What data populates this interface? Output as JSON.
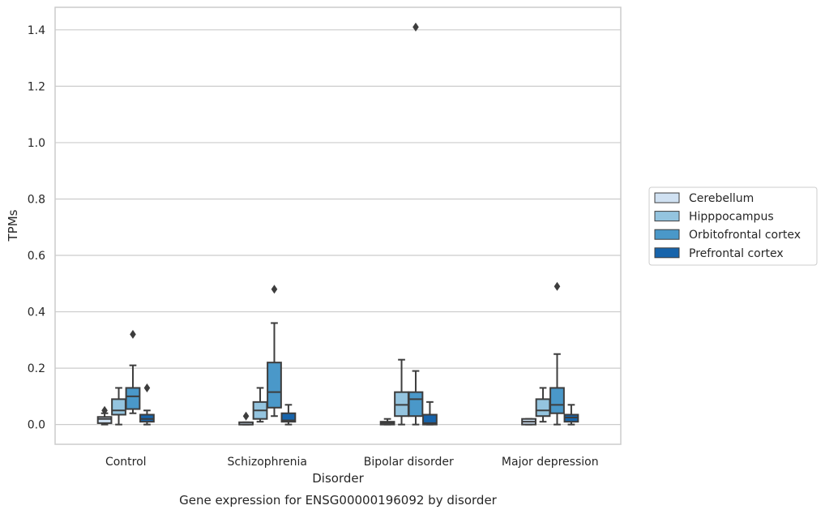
{
  "chart_data": {
    "type": "box",
    "title": "",
    "caption": "Gene expression for ENSG00000196092 by disorder",
    "xlabel": "Disorder",
    "ylabel": "TPMs",
    "ylim": [
      -0.07,
      1.48
    ],
    "yticks": [
      0.0,
      0.2,
      0.4,
      0.6,
      0.8,
      1.0,
      1.2,
      1.4
    ],
    "ytick_labels": [
      "0.0",
      "0.2",
      "0.4",
      "0.6",
      "0.8",
      "1.0",
      "1.2",
      "1.4"
    ],
    "grid": "horizontal",
    "legend_position": "right",
    "categories": [
      "Control",
      "Schizophrenia",
      "Bipolar disorder",
      "Major depression"
    ],
    "series": [
      {
        "name": "Cerebellum",
        "color": "#d0e1f2",
        "boxes": [
          {
            "whislo": 0.0,
            "q1": 0.005,
            "med": 0.02,
            "q3": 0.027,
            "whishi": 0.04,
            "fliers": [
              0.05
            ]
          },
          {
            "whislo": 0.0,
            "q1": 0.0,
            "med": 0.0,
            "q3": 0.008,
            "whishi": 0.008,
            "fliers": [
              0.03
            ]
          },
          {
            "whislo": 0.0,
            "q1": 0.0,
            "med": 0.005,
            "q3": 0.01,
            "whishi": 0.02,
            "fliers": []
          },
          {
            "whislo": 0.0,
            "q1": 0.0,
            "med": 0.01,
            "q3": 0.02,
            "whishi": 0.02,
            "fliers": []
          }
        ]
      },
      {
        "name": "Hipppocampus",
        "color": "#94c4df",
        "boxes": [
          {
            "whislo": 0.0,
            "q1": 0.035,
            "med": 0.05,
            "q3": 0.09,
            "whishi": 0.13,
            "fliers": []
          },
          {
            "whislo": 0.01,
            "q1": 0.02,
            "med": 0.05,
            "q3": 0.08,
            "whishi": 0.13,
            "fliers": []
          },
          {
            "whislo": 0.0,
            "q1": 0.03,
            "med": 0.07,
            "q3": 0.115,
            "whishi": 0.23,
            "fliers": []
          },
          {
            "whislo": 0.01,
            "q1": 0.03,
            "med": 0.05,
            "q3": 0.09,
            "whishi": 0.13,
            "fliers": []
          }
        ]
      },
      {
        "name": "Orbitofrontal cortex",
        "color": "#4a98c9",
        "boxes": [
          {
            "whislo": 0.04,
            "q1": 0.055,
            "med": 0.1,
            "q3": 0.13,
            "whishi": 0.21,
            "fliers": [
              0.32
            ]
          },
          {
            "whislo": 0.03,
            "q1": 0.06,
            "med": 0.115,
            "q3": 0.22,
            "whishi": 0.36,
            "fliers": [
              0.48
            ]
          },
          {
            "whislo": 0.0,
            "q1": 0.03,
            "med": 0.09,
            "q3": 0.115,
            "whishi": 0.19,
            "fliers": [
              1.41
            ]
          },
          {
            "whislo": 0.0,
            "q1": 0.04,
            "med": 0.07,
            "q3": 0.13,
            "whishi": 0.25,
            "fliers": [
              0.49
            ]
          }
        ]
      },
      {
        "name": "Prefrontal cortex",
        "color": "#1764ab",
        "boxes": [
          {
            "whislo": 0.0,
            "q1": 0.01,
            "med": 0.02,
            "q3": 0.035,
            "whishi": 0.05,
            "fliers": [
              0.13
            ]
          },
          {
            "whislo": 0.0,
            "q1": 0.01,
            "med": 0.015,
            "q3": 0.04,
            "whishi": 0.07,
            "fliers": []
          },
          {
            "whislo": 0.0,
            "q1": 0.0,
            "med": 0.005,
            "q3": 0.035,
            "whishi": 0.08,
            "fliers": []
          },
          {
            "whislo": 0.0,
            "q1": 0.01,
            "med": 0.025,
            "q3": 0.035,
            "whishi": 0.07,
            "fliers": []
          }
        ]
      }
    ]
  }
}
